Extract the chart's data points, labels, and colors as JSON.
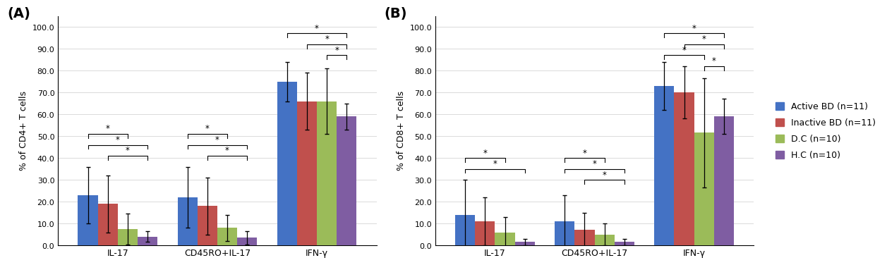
{
  "panel_A": {
    "title": "(A)",
    "ylabel": "% of CD4+ T cells",
    "categories": [
      "IL-17",
      "CD45RO+IL-17",
      "IFN-γ"
    ],
    "values": [
      [
        23.0,
        19.0,
        7.5,
        4.0
      ],
      [
        22.0,
        18.0,
        8.0,
        3.5
      ],
      [
        75.0,
        66.0,
        66.0,
        59.0
      ]
    ],
    "errors": [
      [
        13.0,
        13.0,
        7.0,
        2.5
      ],
      [
        14.0,
        13.0,
        6.0,
        3.0
      ],
      [
        9.0,
        13.0,
        15.0,
        6.0
      ]
    ],
    "ylim": [
      0,
      105
    ],
    "yticks": [
      0.0,
      10.0,
      20.0,
      30.0,
      40.0,
      50.0,
      60.0,
      70.0,
      80.0,
      90.0,
      100.0
    ],
    "sig_brackets_IL17": [
      [
        0,
        2,
        51,
        "*"
      ],
      [
        0,
        3,
        46,
        "*"
      ],
      [
        1,
        3,
        41,
        "*"
      ]
    ],
    "sig_brackets_CD45RO": [
      [
        0,
        2,
        51,
        "*"
      ],
      [
        0,
        3,
        46,
        "*"
      ],
      [
        1,
        3,
        41,
        "*"
      ]
    ],
    "sig_brackets_IFN": [
      [
        0,
        3,
        97,
        "*"
      ],
      [
        1,
        3,
        92,
        "*"
      ],
      [
        2,
        3,
        87,
        "*"
      ]
    ]
  },
  "panel_B": {
    "title": "(B)",
    "ylabel": "% of CD8+ T cells",
    "categories": [
      "IL-17",
      "CD45RO+IL-17",
      "IFN-γ"
    ],
    "values": [
      [
        14.0,
        11.0,
        6.0,
        1.5
      ],
      [
        11.0,
        7.0,
        5.0,
        1.5
      ],
      [
        73.0,
        70.0,
        51.5,
        59.0
      ]
    ],
    "errors": [
      [
        16.0,
        11.0,
        7.0,
        1.5
      ],
      [
        12.0,
        8.0,
        5.0,
        1.5
      ],
      [
        11.0,
        12.0,
        25.0,
        8.0
      ]
    ],
    "ylim": [
      0,
      105
    ],
    "yticks": [
      0.0,
      10.0,
      20.0,
      30.0,
      40.0,
      50.0,
      60.0,
      70.0,
      80.0,
      90.0,
      100.0
    ],
    "sig_brackets_IL17": [
      [
        0,
        2,
        40,
        "*"
      ],
      [
        0,
        3,
        35,
        "*"
      ]
    ],
    "sig_brackets_CD45RO": [
      [
        0,
        2,
        40,
        "*"
      ],
      [
        0,
        3,
        35,
        "*"
      ],
      [
        1,
        3,
        30,
        "*"
      ]
    ],
    "sig_brackets_IFN": [
      [
        0,
        3,
        97,
        "*"
      ],
      [
        1,
        3,
        92,
        "*"
      ],
      [
        0,
        2,
        87,
        "*"
      ],
      [
        2,
        3,
        82,
        "*"
      ]
    ]
  },
  "colors": [
    "#4472C4",
    "#C0504D",
    "#9BBB59",
    "#7F5DA2"
  ],
  "bar_width": 0.2,
  "legend_labels": [
    "Active BD (n=11)",
    "Inactive BD (n=11)",
    "D.C (n=10)",
    "H.C (n=10)"
  ],
  "background_color": "#FFFFFF"
}
